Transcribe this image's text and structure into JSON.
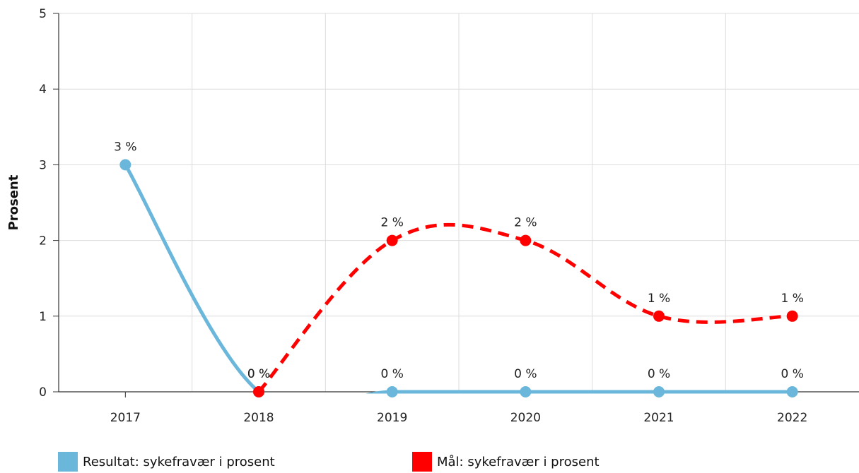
{
  "chart_data": {
    "type": "line",
    "x": [
      "2017",
      "2018",
      "2019",
      "2020",
      "2021",
      "2022"
    ],
    "xlabel": "",
    "ylabel": "Prosent",
    "ylim": [
      0,
      5
    ],
    "yticks": [
      "0",
      "1",
      "2",
      "3",
      "4",
      "5"
    ],
    "grid": true,
    "legend_position": "bottom-left",
    "series": [
      {
        "name": "Resultat: sykefravær i prosent",
        "color": "#6bb7db",
        "line_style": "solid",
        "values": [
          3,
          0,
          0,
          0,
          0,
          0
        ],
        "labels": [
          "3 %",
          "0 %",
          "0 %",
          "0 %",
          "0 %",
          "0 %"
        ]
      },
      {
        "name": "Mål: sykefravær i prosent",
        "color": "#ff0000",
        "line_style": "dashed",
        "values": [
          null,
          0,
          2,
          2,
          1,
          1
        ],
        "labels": [
          null,
          "0 %",
          "2 %",
          "2 %",
          "1 %",
          "1 %"
        ]
      }
    ]
  }
}
